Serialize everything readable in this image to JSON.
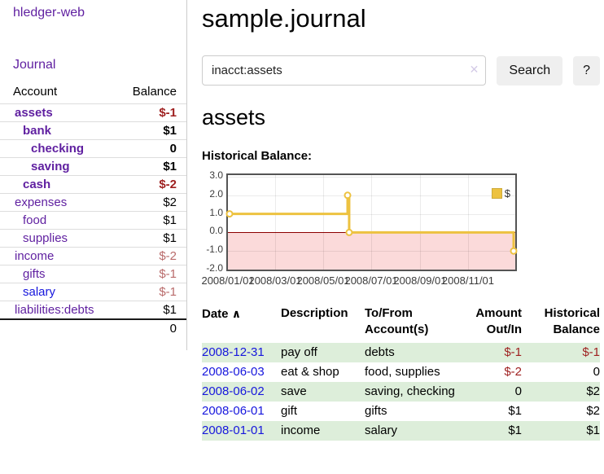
{
  "colors": {
    "link_purple": "#5f1fa0",
    "link_blue": "#1616dd",
    "negative_red": "#9e1f1f",
    "negative_muted": "#b96b6b",
    "row_stripe_green": "#ddeeda",
    "series_gold": "#edc240",
    "negative_region_pink": "#fbdada",
    "zero_line_dark_red": "#8b0000",
    "chart_border_gray": "#545454"
  },
  "sidebar": {
    "app_title": "hledger-web",
    "journal_label": "Journal",
    "table": {
      "headers": [
        "Account",
        "Balance"
      ],
      "rows": [
        {
          "label": "assets",
          "balance": "$-1",
          "depth": 1,
          "bold": true,
          "link": "purple",
          "bal": "neg"
        },
        {
          "label": "bank",
          "balance": "$1",
          "depth": 2,
          "bold": true,
          "link": "purple",
          "bal": "pos"
        },
        {
          "label": "checking",
          "balance": "0",
          "depth": 3,
          "bold": true,
          "link": "purple",
          "bal": "pos"
        },
        {
          "label": "saving",
          "balance": "$1",
          "depth": 3,
          "bold": true,
          "link": "purple",
          "bal": "pos"
        },
        {
          "label": "cash",
          "balance": "$-2",
          "depth": 2,
          "bold": true,
          "link": "purple",
          "bal": "neg"
        },
        {
          "label": "expenses",
          "balance": "$2",
          "depth": 1,
          "bold": false,
          "link": "purple",
          "bal": "pos"
        },
        {
          "label": "food",
          "balance": "$1",
          "depth": 2,
          "bold": false,
          "link": "purple",
          "bal": "pos"
        },
        {
          "label": "supplies",
          "balance": "$1",
          "depth": 2,
          "bold": false,
          "link": "purple",
          "bal": "pos"
        },
        {
          "label": "income",
          "balance": "$-2",
          "depth": 1,
          "bold": false,
          "link": "purple",
          "bal": "negmuted"
        },
        {
          "label": "gifts",
          "balance": "$-1",
          "depth": 2,
          "bold": false,
          "link": "purple",
          "bal": "negmuted"
        },
        {
          "label": "salary",
          "balance": "$-1",
          "depth": 2,
          "bold": false,
          "link": "blue",
          "bal": "negmuted"
        },
        {
          "label": "liabilities:debts",
          "balance": "$1",
          "depth": 1,
          "bold": false,
          "link": "purple",
          "bal": "pos"
        }
      ],
      "total": "0"
    }
  },
  "main": {
    "title": "sample.journal",
    "search": {
      "value": "inacct:assets",
      "clear_icon": "✕",
      "button_label": "Search",
      "help_label": "?"
    },
    "section_title": "assets",
    "chart_label": "Historical Balance:"
  },
  "chart_data": {
    "type": "line",
    "step": true,
    "title": "Historical Balance:",
    "series": [
      {
        "name": "$",
        "color": "#edc240",
        "points": [
          [
            "2008-01-01",
            1
          ],
          [
            "2008-06-01",
            2
          ],
          [
            "2008-06-03",
            0
          ],
          [
            "2008-12-31",
            -1
          ]
        ]
      }
    ],
    "x_range": [
      "2008-01-01",
      "2008-12-31"
    ],
    "x_ticks": [
      "2008/01/01",
      "2008/03/01",
      "2008/05/01",
      "2008/07/01",
      "2008/09/01",
      "2008/11/01"
    ],
    "y_range": [
      -2,
      3
    ],
    "y_ticks": [
      "3.0",
      "2.0",
      "1.0",
      "0.0",
      "-1.0",
      "-2.0"
    ],
    "grid": true,
    "legend_position": "top-right",
    "negative_region_shaded": true
  },
  "register": {
    "headers": {
      "date": "Date",
      "sort_icon": "∧",
      "description": "Description",
      "accounts": "To/From Account(s)",
      "amount": "Amount Out/In",
      "balance": "Historical Balance"
    },
    "rows": [
      {
        "date": "2008-12-31",
        "description": "pay off",
        "accounts": "debts",
        "amount": "$-1",
        "balance": "$-1"
      },
      {
        "date": "2008-06-03",
        "description": "eat & shop",
        "accounts": "food, supplies",
        "amount": "$-2",
        "balance": "0"
      },
      {
        "date": "2008-06-02",
        "description": "save",
        "accounts": "saving, checking",
        "amount": "0",
        "balance": "$2"
      },
      {
        "date": "2008-06-01",
        "description": "gift",
        "accounts": "gifts",
        "amount": "$1",
        "balance": "$2"
      },
      {
        "date": "2008-01-01",
        "description": "income",
        "accounts": "salary",
        "amount": "$1",
        "balance": "$1"
      }
    ]
  }
}
